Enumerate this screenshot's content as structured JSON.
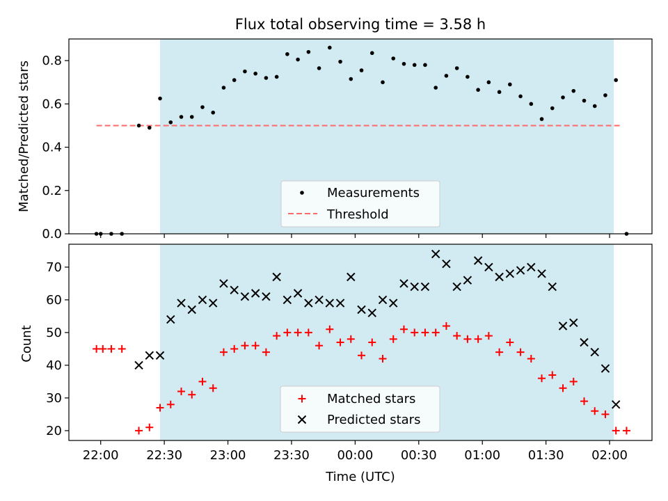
{
  "chart_data": [
    {
      "type": "scatter",
      "title": "Flux total observing time = 3.58 h",
      "xlabel": "",
      "ylabel": "Matched/Predicted stars",
      "ylim": [
        0.0,
        0.9
      ],
      "yticks": [
        "0.0",
        "0.2",
        "0.4",
        "0.6",
        "0.8"
      ],
      "shaded_interval": [
        "22:28",
        "02:02"
      ],
      "shade_color": "#add8e6",
      "threshold": 0.5,
      "threshold_range": [
        "21:58",
        "02:06"
      ],
      "threshold_color": "#ff6a6a",
      "legend": {
        "position": "lower center",
        "measurements": "Measurements",
        "threshold": "Threshold"
      },
      "series": [
        {
          "name": "Measurements",
          "color": "#000000",
          "marker": "point",
          "points": [
            [
              "21:58",
              0.0
            ],
            [
              "22:00",
              0.0
            ],
            [
              "22:05",
              0.0
            ],
            [
              "22:10",
              0.0
            ],
            [
              "22:18",
              0.5
            ],
            [
              "22:23",
              0.49
            ],
            [
              "22:28",
              0.625
            ],
            [
              "22:33",
              0.515
            ],
            [
              "22:38",
              0.54
            ],
            [
              "22:43",
              0.54
            ],
            [
              "22:48",
              0.585
            ],
            [
              "22:53",
              0.56
            ],
            [
              "22:58",
              0.675
            ],
            [
              "23:03",
              0.71
            ],
            [
              "23:08",
              0.75
            ],
            [
              "23:13",
              0.74
            ],
            [
              "23:18",
              0.72
            ],
            [
              "23:23",
              0.725
            ],
            [
              "23:28",
              0.83
            ],
            [
              "23:33",
              0.805
            ],
            [
              "23:38",
              0.84
            ],
            [
              "23:43",
              0.765
            ],
            [
              "23:48",
              0.86
            ],
            [
              "23:53",
              0.795
            ],
            [
              "23:58",
              0.715
            ],
            [
              "00:03",
              0.755
            ],
            [
              "00:08",
              0.835
            ],
            [
              "00:13",
              0.7
            ],
            [
              "00:18",
              0.81
            ],
            [
              "00:23",
              0.785
            ],
            [
              "00:28",
              0.78
            ],
            [
              "00:33",
              0.78
            ],
            [
              "00:38",
              0.675
            ],
            [
              "00:43",
              0.73
            ],
            [
              "00:48",
              0.765
            ],
            [
              "00:53",
              0.725
            ],
            [
              "00:58",
              0.665
            ],
            [
              "01:03",
              0.7
            ],
            [
              "01:08",
              0.655
            ],
            [
              "01:13",
              0.69
            ],
            [
              "01:18",
              0.635
            ],
            [
              "01:23",
              0.6
            ],
            [
              "01:28",
              0.53
            ],
            [
              "01:33",
              0.58
            ],
            [
              "01:38",
              0.63
            ],
            [
              "01:43",
              0.66
            ],
            [
              "01:48",
              0.615
            ],
            [
              "01:53",
              0.59
            ],
            [
              "01:58",
              0.64
            ],
            [
              "02:03",
              0.71
            ],
            [
              "02:08",
              0.0
            ]
          ]
        }
      ]
    },
    {
      "type": "scatter",
      "title": "",
      "xlabel": "Time (UTC)",
      "ylabel": "Count",
      "ylim": [
        17,
        77
      ],
      "yticks": [
        "20",
        "30",
        "40",
        "50",
        "60",
        "70"
      ],
      "xlim": [
        "21:45",
        "02:20"
      ],
      "xticks": [
        "22:00",
        "22:30",
        "23:00",
        "23:30",
        "00:00",
        "00:30",
        "01:00",
        "01:30",
        "02:00"
      ],
      "shaded_interval": [
        "22:28",
        "02:02"
      ],
      "shade_color": "#add8e6",
      "legend": {
        "position": "lower center"
      },
      "series": [
        {
          "name": "Matched stars",
          "color": "#ff0000",
          "marker": "plus",
          "points": [
            [
              "21:58",
              45
            ],
            [
              "22:01",
              45
            ],
            [
              "22:05",
              45
            ],
            [
              "22:10",
              45
            ],
            [
              "22:18",
              20
            ],
            [
              "22:23",
              21
            ],
            [
              "22:28",
              27
            ],
            [
              "22:33",
              28
            ],
            [
              "22:38",
              32
            ],
            [
              "22:43",
              31
            ],
            [
              "22:48",
              35
            ],
            [
              "22:53",
              33
            ],
            [
              "22:58",
              44
            ],
            [
              "23:03",
              45
            ],
            [
              "23:08",
              46
            ],
            [
              "23:13",
              46
            ],
            [
              "23:18",
              44
            ],
            [
              "23:23",
              49
            ],
            [
              "23:28",
              50
            ],
            [
              "23:33",
              50
            ],
            [
              "23:38",
              50
            ],
            [
              "23:43",
              46
            ],
            [
              "23:48",
              51
            ],
            [
              "23:53",
              47
            ],
            [
              "23:58",
              48
            ],
            [
              "00:03",
              43
            ],
            [
              "00:08",
              47
            ],
            [
              "00:13",
              42
            ],
            [
              "00:18",
              48
            ],
            [
              "00:23",
              51
            ],
            [
              "00:28",
              50
            ],
            [
              "00:33",
              50
            ],
            [
              "00:38",
              50
            ],
            [
              "00:43",
              52
            ],
            [
              "00:48",
              49
            ],
            [
              "00:53",
              48
            ],
            [
              "00:58",
              48
            ],
            [
              "01:03",
              49
            ],
            [
              "01:08",
              44
            ],
            [
              "01:13",
              47
            ],
            [
              "01:18",
              44
            ],
            [
              "01:23",
              42
            ],
            [
              "01:28",
              36
            ],
            [
              "01:33",
              37
            ],
            [
              "01:38",
              33
            ],
            [
              "01:43",
              35
            ],
            [
              "01:48",
              29
            ],
            [
              "01:53",
              26
            ],
            [
              "01:58",
              25
            ],
            [
              "02:03",
              20
            ],
            [
              "02:08",
              20
            ]
          ]
        },
        {
          "name": "Predicted stars",
          "color": "#000000",
          "marker": "x",
          "points": [
            [
              "22:18",
              40
            ],
            [
              "22:23",
              43
            ],
            [
              "22:28",
              43
            ],
            [
              "22:33",
              54
            ],
            [
              "22:38",
              59
            ],
            [
              "22:43",
              57
            ],
            [
              "22:48",
              60
            ],
            [
              "22:53",
              59
            ],
            [
              "22:58",
              65
            ],
            [
              "23:03",
              63
            ],
            [
              "23:08",
              61
            ],
            [
              "23:13",
              62
            ],
            [
              "23:18",
              61
            ],
            [
              "23:23",
              67
            ],
            [
              "23:28",
              60
            ],
            [
              "23:33",
              62
            ],
            [
              "23:38",
              59
            ],
            [
              "23:43",
              60
            ],
            [
              "23:48",
              59
            ],
            [
              "23:53",
              59
            ],
            [
              "23:58",
              67
            ],
            [
              "00:03",
              57
            ],
            [
              "00:08",
              56
            ],
            [
              "00:13",
              60
            ],
            [
              "00:18",
              59
            ],
            [
              "00:23",
              65
            ],
            [
              "00:28",
              64
            ],
            [
              "00:33",
              64
            ],
            [
              "00:38",
              74
            ],
            [
              "00:43",
              71
            ],
            [
              "00:48",
              64
            ],
            [
              "00:53",
              66
            ],
            [
              "00:58",
              72
            ],
            [
              "01:03",
              70
            ],
            [
              "01:08",
              67
            ],
            [
              "01:13",
              68
            ],
            [
              "01:18",
              69
            ],
            [
              "01:23",
              70
            ],
            [
              "01:28",
              68
            ],
            [
              "01:33",
              64
            ],
            [
              "01:38",
              52
            ],
            [
              "01:43",
              53
            ],
            [
              "01:48",
              47
            ],
            [
              "01:53",
              44
            ],
            [
              "01:58",
              39
            ],
            [
              "02:03",
              28
            ]
          ]
        }
      ]
    }
  ]
}
